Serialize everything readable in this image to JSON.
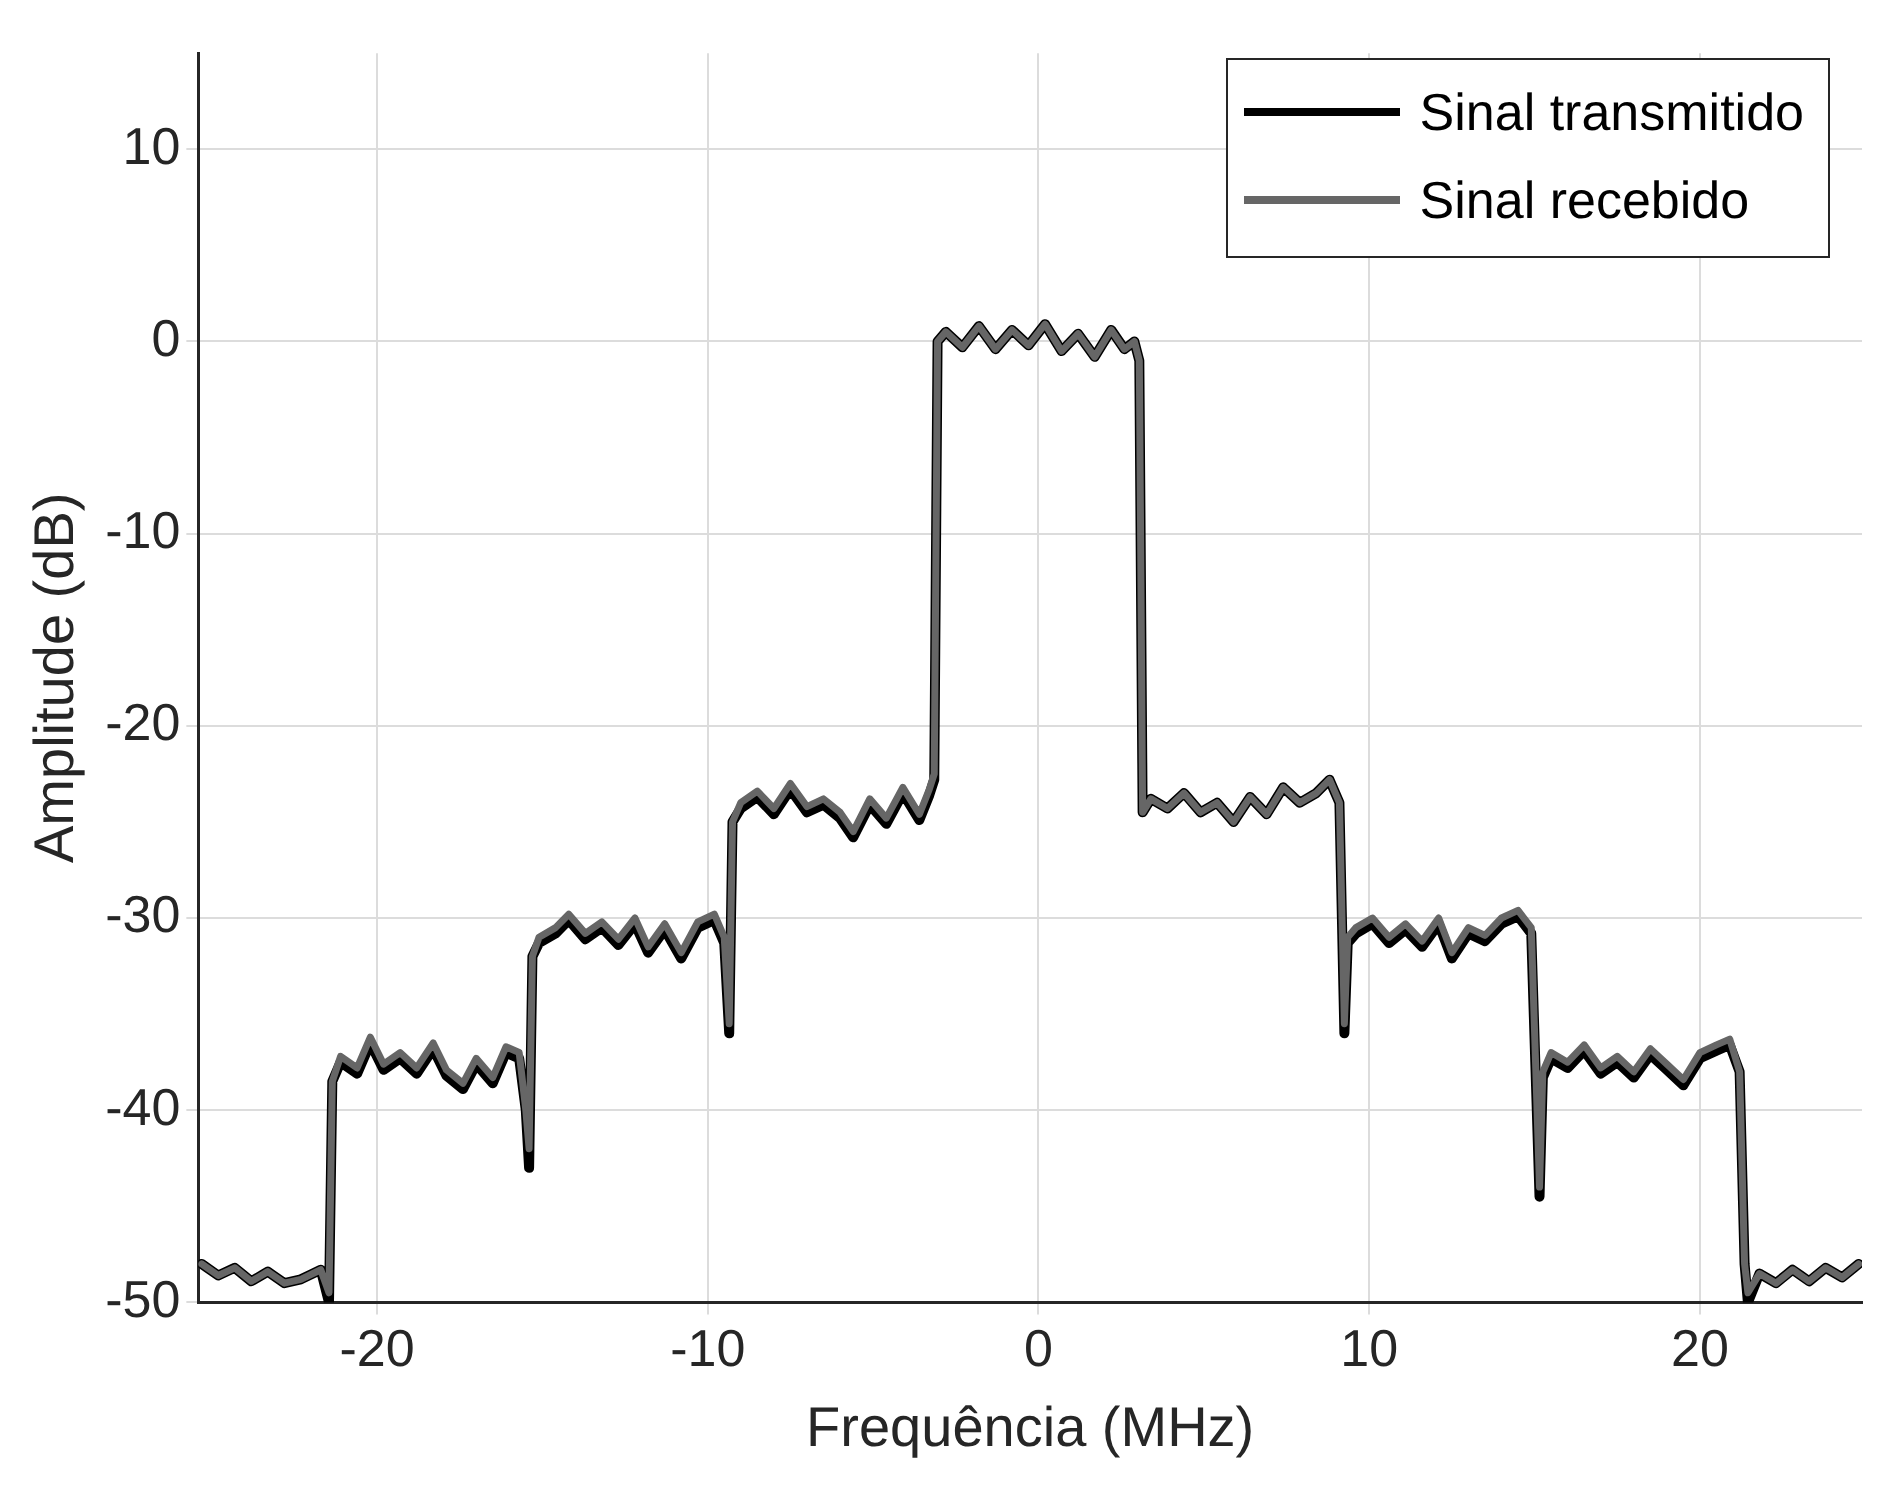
{
  "chart_data": {
    "type": "line",
    "xlabel": "Frequência (MHz)",
    "ylabel": "Amplitude (dB)",
    "xlim": [
      -25.4,
      24.9
    ],
    "ylim": [
      -50,
      15
    ],
    "xticks": [
      -20,
      -10,
      0,
      10,
      20
    ],
    "yticks": [
      -50,
      -40,
      -30,
      -20,
      -10,
      0,
      10
    ],
    "grid": true,
    "legend": "top right",
    "marker": "none",
    "line_style": "solid",
    "series": [
      {
        "name": "Sinal transmitido",
        "color": "#000000",
        "x": [
          -25.3,
          -24.8,
          -24.3,
          -23.8,
          -23.3,
          -22.8,
          -22.3,
          -21.7,
          -21.45,
          -21.35,
          -21.1,
          -20.6,
          -20.2,
          -19.8,
          -19.3,
          -18.8,
          -18.3,
          -17.9,
          -17.4,
          -17.0,
          -16.5,
          -16.1,
          -15.7,
          -15.5,
          -15.4,
          -15.3,
          -15.1,
          -14.6,
          -14.2,
          -13.7,
          -13.2,
          -12.7,
          -12.2,
          -11.8,
          -11.3,
          -10.8,
          -10.3,
          -9.8,
          -9.5,
          -9.35,
          -9.25,
          -9.0,
          -8.5,
          -8.0,
          -7.5,
          -7.0,
          -6.5,
          -6.0,
          -5.6,
          -5.1,
          -4.6,
          -4.1,
          -3.6,
          -3.3,
          -3.15,
          -3.05,
          -2.8,
          -2.3,
          -1.8,
          -1.3,
          -0.8,
          -0.3,
          0.2,
          0.7,
          1.2,
          1.7,
          2.2,
          2.6,
          2.9,
          3.05,
          3.15,
          3.4,
          3.9,
          4.4,
          4.9,
          5.4,
          5.9,
          6.4,
          6.9,
          7.4,
          7.9,
          8.4,
          8.8,
          9.1,
          9.25,
          9.35,
          9.6,
          10.1,
          10.6,
          11.1,
          11.6,
          12.1,
          12.5,
          13.0,
          13.5,
          14.0,
          14.5,
          14.9,
          15.15,
          15.25,
          15.5,
          16.0,
          16.5,
          17.0,
          17.5,
          18.0,
          18.5,
          19.0,
          19.5,
          20.0,
          20.5,
          20.9,
          21.2,
          21.35,
          21.45,
          21.8,
          22.3,
          22.8,
          23.3,
          23.8,
          24.3,
          24.8
        ],
        "values": [
          -48,
          -48.6,
          -48.2,
          -48.9,
          -48.4,
          -49,
          -48.8,
          -48.3,
          -50,
          -38.5,
          -37.5,
          -38.1,
          -36.5,
          -37.9,
          -37.3,
          -38.1,
          -36.8,
          -38.2,
          -38.9,
          -37.6,
          -38.6,
          -37,
          -37.3,
          -40,
          -43,
          -32,
          -31.3,
          -30.8,
          -30.1,
          -31.1,
          -30.5,
          -31.4,
          -30.3,
          -31.8,
          -30.6,
          -32.1,
          -30.5,
          -30.1,
          -31.3,
          -36,
          -25,
          -24.3,
          -23.7,
          -24.6,
          -23.3,
          -24.5,
          -24.1,
          -24.8,
          -25.8,
          -24.1,
          -25.1,
          -23.5,
          -24.9,
          -23.6,
          -22.8,
          0,
          0.5,
          -0.3,
          0.8,
          -0.4,
          0.6,
          -0.2,
          0.9,
          -0.5,
          0.4,
          -0.8,
          0.6,
          -0.4,
          0,
          -1,
          -24.5,
          -23.8,
          -24.3,
          -23.5,
          -24.5,
          -24,
          -25,
          -23.7,
          -24.6,
          -23.2,
          -24,
          -23.5,
          -22.8,
          -24,
          -36,
          -31.3,
          -30.8,
          -30.3,
          -31.3,
          -30.6,
          -31.5,
          -30.3,
          -32.1,
          -30.8,
          -31.2,
          -30.3,
          -29.9,
          -30.8,
          -44.5,
          -38.3,
          -37.3,
          -37.8,
          -36.9,
          -38.1,
          -37.5,
          -38.3,
          -37.1,
          -37.9,
          -38.7,
          -37.3,
          -36.9,
          -36.6,
          -38,
          -48,
          -50,
          -48.5,
          -49,
          -48.3,
          -48.9,
          -48.2,
          -48.7,
          -48
        ]
      },
      {
        "name": "Sinal recebido",
        "color": "#666666",
        "x": [
          -25.3,
          -24.8,
          -24.3,
          -23.8,
          -23.3,
          -22.8,
          -22.3,
          -21.7,
          -21.45,
          -21.35,
          -21.1,
          -20.6,
          -20.2,
          -19.8,
          -19.3,
          -18.8,
          -18.3,
          -17.9,
          -17.4,
          -17.0,
          -16.5,
          -16.1,
          -15.7,
          -15.5,
          -15.4,
          -15.3,
          -15.1,
          -14.6,
          -14.2,
          -13.7,
          -13.2,
          -12.7,
          -12.2,
          -11.8,
          -11.3,
          -10.8,
          -10.3,
          -9.8,
          -9.5,
          -9.35,
          -9.25,
          -9.0,
          -8.5,
          -8.0,
          -7.5,
          -7.0,
          -6.5,
          -6.0,
          -5.6,
          -5.1,
          -4.6,
          -4.1,
          -3.6,
          -3.3,
          -3.15,
          -3.05,
          -2.8,
          -2.3,
          -1.8,
          -1.3,
          -0.8,
          -0.3,
          0.2,
          0.7,
          1.2,
          1.7,
          2.2,
          2.6,
          2.9,
          3.05,
          3.15,
          3.4,
          3.9,
          4.4,
          4.9,
          5.4,
          5.9,
          6.4,
          6.9,
          7.4,
          7.9,
          8.4,
          8.8,
          9.1,
          9.25,
          9.35,
          9.6,
          10.1,
          10.6,
          11.1,
          11.6,
          12.1,
          12.5,
          13.0,
          13.5,
          14.0,
          14.5,
          14.9,
          15.15,
          15.25,
          15.5,
          16.0,
          16.5,
          17.0,
          17.5,
          18.0,
          18.5,
          19.0,
          19.5,
          20.0,
          20.5,
          20.9,
          21.2,
          21.35,
          21.45,
          21.8,
          22.3,
          22.8,
          23.3,
          23.8,
          24.3,
          24.8
        ],
        "values": [
          -48,
          -48.6,
          -48.2,
          -48.9,
          -48.4,
          -49,
          -48.8,
          -48.3,
          -49.5,
          -38.5,
          -37.2,
          -37.8,
          -36.2,
          -37.6,
          -37,
          -37.8,
          -36.5,
          -37.9,
          -38.6,
          -37.3,
          -38.3,
          -36.7,
          -37,
          -40,
          -42,
          -32,
          -31,
          -30.5,
          -29.8,
          -30.8,
          -30.2,
          -31.1,
          -30,
          -31.5,
          -30.3,
          -31.8,
          -30.2,
          -29.8,
          -31,
          -35.5,
          -25,
          -24,
          -23.4,
          -24.3,
          -23,
          -24.2,
          -23.8,
          -24.5,
          -25.5,
          -23.8,
          -24.8,
          -23.2,
          -24.6,
          -23.3,
          -22.5,
          0,
          0.5,
          -0.3,
          0.8,
          -0.4,
          0.6,
          -0.2,
          0.9,
          -0.5,
          0.4,
          -0.8,
          0.6,
          -0.4,
          0,
          -1,
          -24.5,
          -23.8,
          -24.3,
          -23.5,
          -24.5,
          -24,
          -25,
          -23.7,
          -24.6,
          -23.2,
          -24,
          -23.5,
          -22.8,
          -24,
          -35.5,
          -31,
          -30.5,
          -30,
          -31,
          -30.3,
          -31.2,
          -30,
          -31.8,
          -30.5,
          -30.9,
          -30,
          -29.6,
          -30.5,
          -44,
          -38,
          -37,
          -37.5,
          -36.6,
          -37.8,
          -37.2,
          -38,
          -36.8,
          -37.6,
          -38.4,
          -37,
          -36.6,
          -36.3,
          -38,
          -48,
          -49.5,
          -48.5,
          -49,
          -48.3,
          -48.9,
          -48.2,
          -48.7,
          -48
        ]
      }
    ]
  }
}
